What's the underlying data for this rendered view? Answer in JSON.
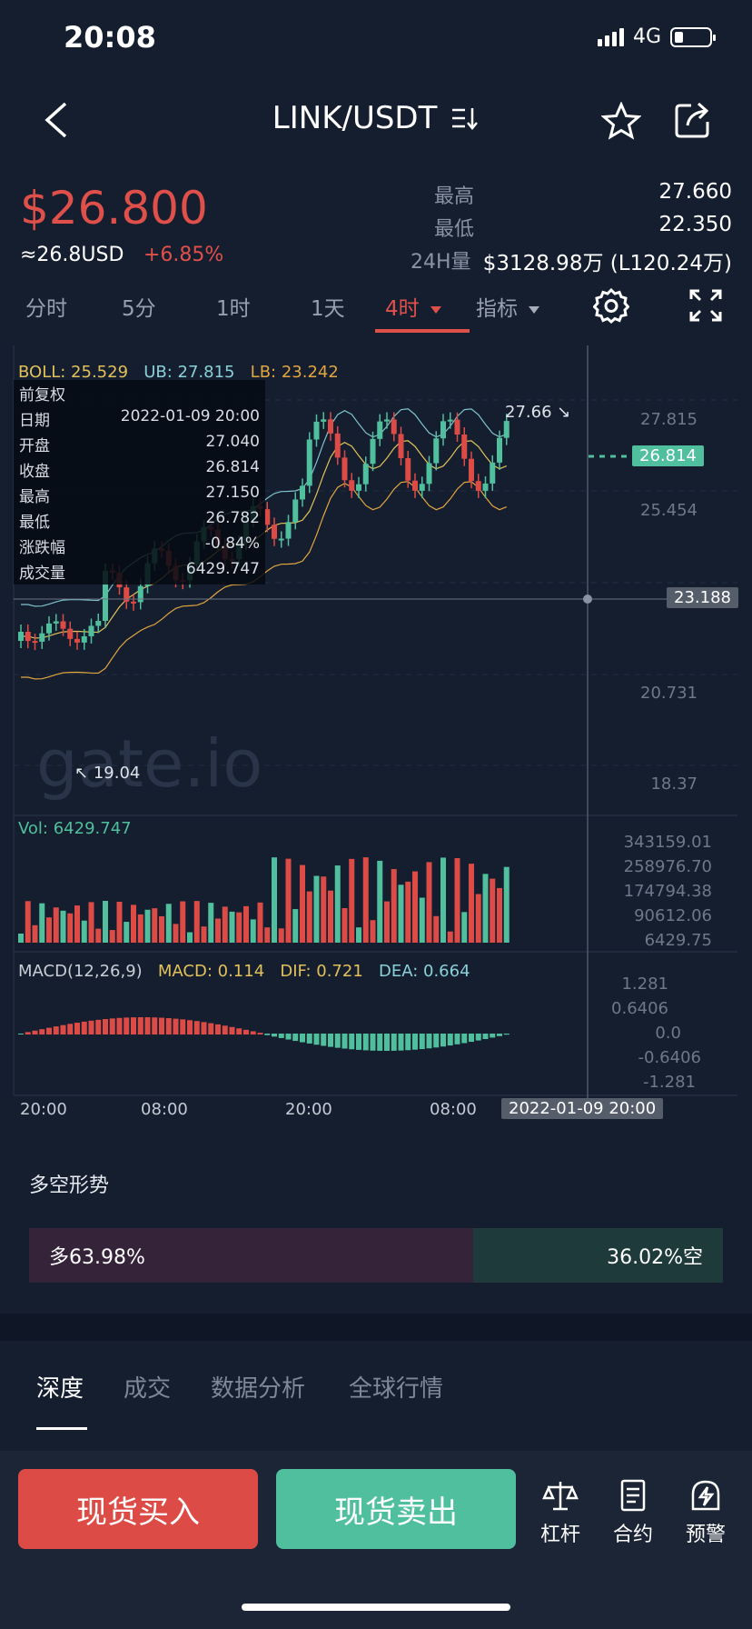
{
  "status": {
    "time": "20:08",
    "network": "4G"
  },
  "nav": {
    "title": "LINK/USDT"
  },
  "ticker": {
    "price": "$26.800",
    "approx": "≈26.8USD",
    "change": "+6.85%",
    "high_label": "最高",
    "high": "27.660",
    "low_label": "最低",
    "low": "22.350",
    "vol_label": "24H量",
    "vol": "$3128.98万 (L120.24万)"
  },
  "timeframes": [
    {
      "label": "分时"
    },
    {
      "label": "5分"
    },
    {
      "label": "1时"
    },
    {
      "label": "1天"
    },
    {
      "label": "4时"
    },
    {
      "label": "指标"
    }
  ],
  "indicators": {
    "boll": "BOLL: 25.529",
    "ub": "UB: 27.815",
    "lb": "LB: 23.242",
    "vol": "Vol: 6429.747",
    "macd": "MACD(12,26,9)",
    "macd_val": "MACD: 0.114",
    "dif": "DIF: 0.721",
    "dea": "DEA: 0.664"
  },
  "tooltip": {
    "header": "前复权",
    "rows": [
      {
        "k": "日期",
        "v": "2022-01-09 20:00"
      },
      {
        "k": "开盘",
        "v": "27.040"
      },
      {
        "k": "收盘",
        "v": "26.814"
      },
      {
        "k": "最高",
        "v": "27.150"
      },
      {
        "k": "最低",
        "v": "26.782"
      },
      {
        "k": "涨跌幅",
        "v": "-0.84%"
      },
      {
        "k": "成交量",
        "v": "6429.747"
      }
    ]
  },
  "chart_data": {
    "type": "candlestick",
    "price_axis": [
      "27.815",
      "25.454",
      "23.188",
      "20.731",
      "18.37"
    ],
    "current_price_tag": "26.814",
    "crosshair_price_tag": "23.188",
    "high_marker": "27.66",
    "low_marker": "19.04",
    "vol_axis": [
      "343159.01",
      "258976.70",
      "174794.38",
      "90612.06",
      "6429.75"
    ],
    "macd_axis": [
      "1.281",
      "0.6406",
      "0.0",
      "-0.6406",
      "-1.281"
    ],
    "time_axis": [
      "20:00",
      "08:00",
      "20:00",
      "08:00"
    ],
    "crosshair_time": "2022-01-09 20:00",
    "watermark": "gate.io"
  },
  "long_short": {
    "title": "多空形势",
    "long": "多63.98%",
    "short": "36.02%空",
    "long_pct": 63.98
  },
  "bottom_tabs": [
    {
      "label": "深度"
    },
    {
      "label": "成交"
    },
    {
      "label": "数据分析"
    },
    {
      "label": "全球行情"
    }
  ],
  "actions": {
    "buy": "现货买入",
    "sell": "现货卖出"
  },
  "tools": [
    {
      "label": "杠杆"
    },
    {
      "label": "合约"
    },
    {
      "label": "预警"
    }
  ],
  "colors": {
    "up": "#4fbf9d",
    "down": "#dc4b45",
    "bg": "#141e2f"
  }
}
